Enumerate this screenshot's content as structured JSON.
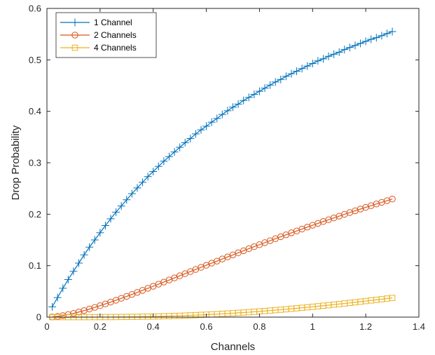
{
  "chart_data": {
    "type": "line",
    "xlabel": "Channels",
    "ylabel": "Drop Probability",
    "xlim": [
      0,
      1.4
    ],
    "ylim": [
      0,
      0.6
    ],
    "xticks": [
      "0",
      "0.2",
      "0.4",
      "0.6",
      "0.8",
      "1",
      "1.2",
      "1.4"
    ],
    "yticks": [
      "0",
      "0.1",
      "0.2",
      "0.3",
      "0.4",
      "0.5",
      "0.6"
    ],
    "legend_position": "top-left",
    "grid": false,
    "x": [
      0.02,
      0.04,
      0.06,
      0.08,
      0.1,
      0.12,
      0.14,
      0.16,
      0.18,
      0.2,
      0.22,
      0.24,
      0.26,
      0.28,
      0.3,
      0.32,
      0.34,
      0.36,
      0.38,
      0.4,
      0.42,
      0.44,
      0.46,
      0.48,
      0.5,
      0.52,
      0.54,
      0.56,
      0.58,
      0.6,
      0.62,
      0.64,
      0.66,
      0.68,
      0.7,
      0.72,
      0.74,
      0.76,
      0.78,
      0.8,
      0.82,
      0.84,
      0.86,
      0.88,
      0.9,
      0.92,
      0.94,
      0.96,
      0.98,
      1.0,
      1.02,
      1.04,
      1.06,
      1.08,
      1.1,
      1.12,
      1.14,
      1.16,
      1.18,
      1.2,
      1.22,
      1.24,
      1.26,
      1.28,
      1.3
    ],
    "series": [
      {
        "name": "1 Channel",
        "color": "#0072BD",
        "marker": "plus",
        "values": [
          0.02,
          0.038,
          0.056,
          0.073,
          0.089,
          0.105,
          0.121,
          0.136,
          0.15,
          0.164,
          0.178,
          0.191,
          0.204,
          0.216,
          0.228,
          0.24,
          0.251,
          0.262,
          0.273,
          0.283,
          0.293,
          0.303,
          0.312,
          0.321,
          0.33,
          0.339,
          0.347,
          0.356,
          0.364,
          0.371,
          0.379,
          0.386,
          0.394,
          0.401,
          0.408,
          0.414,
          0.421,
          0.427,
          0.433,
          0.439,
          0.445,
          0.451,
          0.457,
          0.462,
          0.468,
          0.473,
          0.478,
          0.483,
          0.488,
          0.493,
          0.498,
          0.502,
          0.507,
          0.511,
          0.515,
          0.52,
          0.524,
          0.528,
          0.532,
          0.536,
          0.54,
          0.543,
          0.547,
          0.551,
          0.555
        ]
      },
      {
        "name": "2 Channels",
        "color": "#D95319",
        "marker": "circle",
        "values": [
          0.0004,
          0.0014,
          0.003,
          0.005,
          0.0073,
          0.0099,
          0.0127,
          0.0157,
          0.0189,
          0.0222,
          0.0256,
          0.0292,
          0.0328,
          0.0365,
          0.0403,
          0.0441,
          0.048,
          0.052,
          0.056,
          0.06,
          0.064,
          0.0681,
          0.0721,
          0.0762,
          0.0803,
          0.0844,
          0.0885,
          0.0926,
          0.0967,
          0.1008,
          0.1049,
          0.1089,
          0.113,
          0.117,
          0.121,
          0.125,
          0.129,
          0.133,
          0.1369,
          0.1408,
          0.1447,
          0.1486,
          0.1524,
          0.1562,
          0.16,
          0.1638,
          0.1675,
          0.1712,
          0.1749,
          0.1786,
          0.1822,
          0.1858,
          0.1893,
          0.1928,
          0.1963,
          0.1998,
          0.2032,
          0.2066,
          0.21,
          0.2133,
          0.2166,
          0.2199,
          0.2231,
          0.2263,
          0.2295
        ]
      },
      {
        "name": "4 Channels",
        "color": "#EDB120",
        "marker": "square",
        "values": [
          0.0,
          0.0,
          0.0,
          0.0,
          0.0,
          0.0,
          0.0,
          0.0,
          0.0,
          0.0001,
          0.0001,
          0.0001,
          0.0002,
          0.0003,
          0.0004,
          0.0005,
          0.0006,
          0.0008,
          0.001,
          0.0012,
          0.0014,
          0.0017,
          0.002,
          0.0023,
          0.0026,
          0.003,
          0.0034,
          0.0038,
          0.0043,
          0.0048,
          0.0053,
          0.0058,
          0.0064,
          0.007,
          0.0076,
          0.0083,
          0.0089,
          0.0096,
          0.0104,
          0.0111,
          0.0119,
          0.0127,
          0.0136,
          0.0144,
          0.0153,
          0.0162,
          0.0172,
          0.0181,
          0.0191,
          0.0201,
          0.0211,
          0.0222,
          0.0232,
          0.0243,
          0.0254,
          0.0265,
          0.0277,
          0.0288,
          0.03,
          0.0312,
          0.0324,
          0.0336,
          0.0348,
          0.0361,
          0.0373
        ]
      }
    ]
  }
}
